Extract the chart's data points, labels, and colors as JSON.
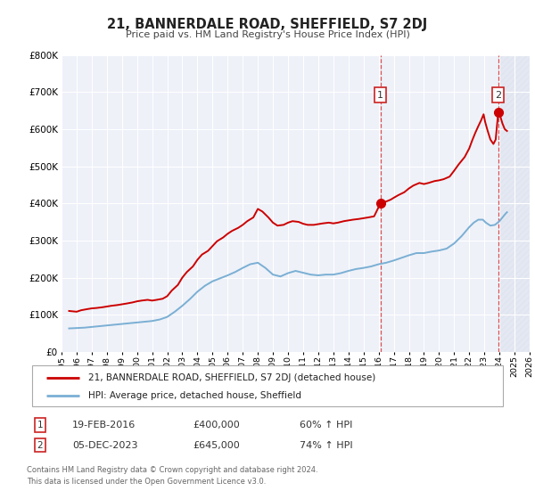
{
  "title": "21, BANNERDALE ROAD, SHEFFIELD, S7 2DJ",
  "subtitle": "Price paid vs. HM Land Registry's House Price Index (HPI)",
  "ylim": [
    0,
    800000
  ],
  "xlim_start": 1995,
  "xlim_end": 2026,
  "background_color": "#ffffff",
  "plot_bg_color": "#eef1f8",
  "grid_color": "#ffffff",
  "red_line_color": "#cc0000",
  "blue_line_color": "#7aafd4",
  "marker1_x": 2016.12,
  "marker1_y": 400000,
  "marker2_x": 2023.92,
  "marker2_y": 645000,
  "vline1_x": 2016.12,
  "vline2_x": 2023.92,
  "sale1_label": "1",
  "sale2_label": "2",
  "sale1_date": "19-FEB-2016",
  "sale1_price": "£400,000",
  "sale1_hpi": "60% ↑ HPI",
  "sale2_date": "05-DEC-2023",
  "sale2_price": "£645,000",
  "sale2_hpi": "74% ↑ HPI",
  "legend_line1": "21, BANNERDALE ROAD, SHEFFIELD, S7 2DJ (detached house)",
  "legend_line2": "HPI: Average price, detached house, Sheffield",
  "footnote1": "Contains HM Land Registry data © Crown copyright and database right 2024.",
  "footnote2": "This data is licensed under the Open Government Licence v3.0.",
  "red_hpi_data": [
    [
      1995.5,
      110000
    ],
    [
      1996.0,
      108000
    ],
    [
      1996.3,
      112000
    ],
    [
      1996.7,
      115000
    ],
    [
      1997.0,
      117000
    ],
    [
      1997.3,
      118000
    ],
    [
      1997.7,
      120000
    ],
    [
      1998.0,
      122000
    ],
    [
      1998.3,
      124000
    ],
    [
      1998.7,
      126000
    ],
    [
      1999.0,
      128000
    ],
    [
      1999.3,
      130000
    ],
    [
      1999.7,
      133000
    ],
    [
      2000.0,
      136000
    ],
    [
      2000.3,
      138000
    ],
    [
      2000.7,
      140000
    ],
    [
      2001.0,
      138000
    ],
    [
      2001.3,
      140000
    ],
    [
      2001.7,
      143000
    ],
    [
      2002.0,
      150000
    ],
    [
      2002.3,
      165000
    ],
    [
      2002.7,
      180000
    ],
    [
      2003.0,
      200000
    ],
    [
      2003.3,
      215000
    ],
    [
      2003.7,
      230000
    ],
    [
      2004.0,
      248000
    ],
    [
      2004.3,
      262000
    ],
    [
      2004.7,
      272000
    ],
    [
      2005.0,
      285000
    ],
    [
      2005.3,
      298000
    ],
    [
      2005.7,
      308000
    ],
    [
      2006.0,
      318000
    ],
    [
      2006.3,
      326000
    ],
    [
      2006.7,
      334000
    ],
    [
      2007.0,
      342000
    ],
    [
      2007.3,
      352000
    ],
    [
      2007.7,
      362000
    ],
    [
      2008.0,
      385000
    ],
    [
      2008.3,
      378000
    ],
    [
      2008.7,
      362000
    ],
    [
      2009.0,
      348000
    ],
    [
      2009.3,
      340000
    ],
    [
      2009.7,
      342000
    ],
    [
      2010.0,
      348000
    ],
    [
      2010.3,
      352000
    ],
    [
      2010.7,
      350000
    ],
    [
      2011.0,
      345000
    ],
    [
      2011.3,
      342000
    ],
    [
      2011.7,
      342000
    ],
    [
      2012.0,
      344000
    ],
    [
      2012.3,
      346000
    ],
    [
      2012.7,
      348000
    ],
    [
      2013.0,
      346000
    ],
    [
      2013.3,
      348000
    ],
    [
      2013.7,
      352000
    ],
    [
      2014.0,
      354000
    ],
    [
      2014.3,
      356000
    ],
    [
      2014.7,
      358000
    ],
    [
      2015.0,
      360000
    ],
    [
      2015.3,
      362000
    ],
    [
      2015.7,
      365000
    ],
    [
      2016.12,
      400000
    ],
    [
      2016.5,
      405000
    ],
    [
      2016.8,
      410000
    ],
    [
      2017.0,
      415000
    ],
    [
      2017.3,
      422000
    ],
    [
      2017.7,
      430000
    ],
    [
      2018.0,
      440000
    ],
    [
      2018.3,
      448000
    ],
    [
      2018.7,
      455000
    ],
    [
      2019.0,
      452000
    ],
    [
      2019.3,
      455000
    ],
    [
      2019.7,
      460000
    ],
    [
      2020.0,
      462000
    ],
    [
      2020.3,
      465000
    ],
    [
      2020.7,
      472000
    ],
    [
      2021.0,
      488000
    ],
    [
      2021.3,
      505000
    ],
    [
      2021.7,
      525000
    ],
    [
      2022.0,
      548000
    ],
    [
      2022.2,
      570000
    ],
    [
      2022.4,
      590000
    ],
    [
      2022.6,
      608000
    ],
    [
      2022.8,
      625000
    ],
    [
      2022.95,
      640000
    ],
    [
      2023.05,
      620000
    ],
    [
      2023.2,
      598000
    ],
    [
      2023.4,
      572000
    ],
    [
      2023.6,
      560000
    ],
    [
      2023.75,
      572000
    ],
    [
      2023.92,
      645000
    ],
    [
      2024.05,
      635000
    ],
    [
      2024.2,
      615000
    ],
    [
      2024.35,
      600000
    ],
    [
      2024.5,
      595000
    ]
  ],
  "blue_hpi_data": [
    [
      1995.5,
      63000
    ],
    [
      1996.0,
      64000
    ],
    [
      1996.5,
      65000
    ],
    [
      1997.0,
      67000
    ],
    [
      1997.5,
      69000
    ],
    [
      1998.0,
      71000
    ],
    [
      1998.5,
      73000
    ],
    [
      1999.0,
      75000
    ],
    [
      1999.5,
      77000
    ],
    [
      2000.0,
      79000
    ],
    [
      2000.5,
      81000
    ],
    [
      2001.0,
      83000
    ],
    [
      2001.5,
      87000
    ],
    [
      2002.0,
      94000
    ],
    [
      2002.5,
      108000
    ],
    [
      2003.0,
      124000
    ],
    [
      2003.5,
      142000
    ],
    [
      2004.0,
      162000
    ],
    [
      2004.5,
      178000
    ],
    [
      2005.0,
      190000
    ],
    [
      2005.5,
      198000
    ],
    [
      2006.0,
      206000
    ],
    [
      2006.5,
      215000
    ],
    [
      2007.0,
      226000
    ],
    [
      2007.5,
      236000
    ],
    [
      2008.0,
      240000
    ],
    [
      2008.5,
      226000
    ],
    [
      2009.0,
      208000
    ],
    [
      2009.5,
      203000
    ],
    [
      2010.0,
      212000
    ],
    [
      2010.5,
      218000
    ],
    [
      2011.0,
      213000
    ],
    [
      2011.5,
      208000
    ],
    [
      2012.0,
      206000
    ],
    [
      2012.5,
      208000
    ],
    [
      2013.0,
      208000
    ],
    [
      2013.5,
      212000
    ],
    [
      2014.0,
      218000
    ],
    [
      2014.5,
      223000
    ],
    [
      2015.0,
      226000
    ],
    [
      2015.5,
      230000
    ],
    [
      2016.0,
      236000
    ],
    [
      2016.5,
      240000
    ],
    [
      2017.0,
      246000
    ],
    [
      2017.5,
      253000
    ],
    [
      2018.0,
      260000
    ],
    [
      2018.5,
      266000
    ],
    [
      2019.0,
      266000
    ],
    [
      2019.5,
      270000
    ],
    [
      2020.0,
      273000
    ],
    [
      2020.5,
      278000
    ],
    [
      2021.0,
      292000
    ],
    [
      2021.5,
      312000
    ],
    [
      2022.0,
      336000
    ],
    [
      2022.3,
      348000
    ],
    [
      2022.6,
      356000
    ],
    [
      2022.9,
      356000
    ],
    [
      2023.1,
      348000
    ],
    [
      2023.4,
      340000
    ],
    [
      2023.7,
      342000
    ],
    [
      2024.0,
      352000
    ],
    [
      2024.2,
      362000
    ],
    [
      2024.4,
      372000
    ],
    [
      2024.5,
      376000
    ]
  ]
}
